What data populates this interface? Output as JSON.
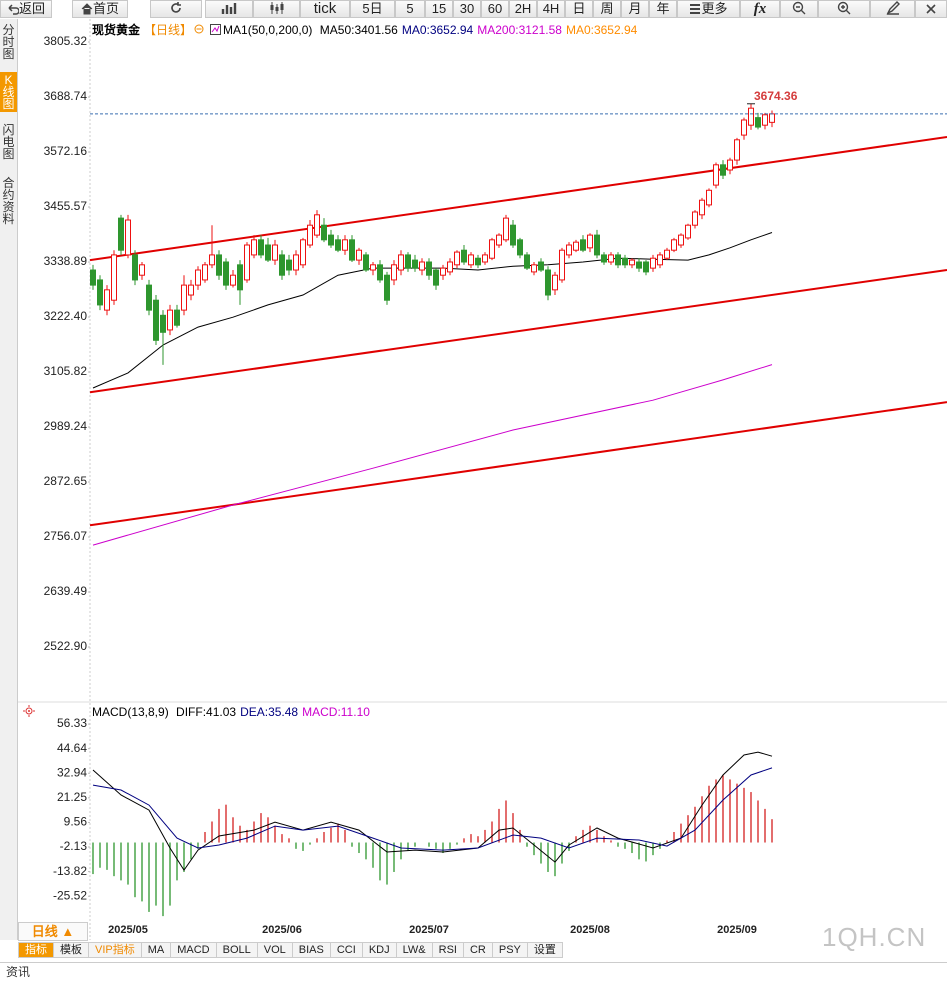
{
  "toolbar": [
    "返回",
    "首页",
    "tick",
    "5日",
    "5",
    "15",
    "30",
    "60",
    "2H",
    "4H",
    "日",
    "周",
    "月",
    "年",
    "更多",
    "fx"
  ],
  "sidebar": [
    "分时图",
    "K线图",
    "闪电图",
    "合约资料"
  ],
  "chart_data": [
    {
      "type": "candlestick",
      "title": "现货黄金",
      "subtitle": "【日线】",
      "indicator": "MA1(50,0,200,0)",
      "legend": [
        {
          "text": "MA50:3401.56",
          "color": "#000000"
        },
        {
          "text": "MA0:3652.94",
          "color": "#000080"
        },
        {
          "text": "MA200:3121.58",
          "color": "#cc00cc"
        },
        {
          "text": "MA0:3652.94",
          "color": "#ff8c00"
        }
      ],
      "up_color": "#ee1111",
      "down_color": "#2e962e",
      "last_line_color": "#3b6fb0",
      "categories": [
        null,
        null,
        null,
        null,
        null,
        "2025/05",
        null,
        null,
        null,
        null,
        null,
        null,
        null,
        null,
        null,
        null,
        null,
        null,
        null,
        null,
        null,
        null,
        null,
        null,
        null,
        null,
        null,
        "2025/06",
        null,
        null,
        null,
        null,
        null,
        null,
        null,
        null,
        null,
        null,
        null,
        null,
        null,
        null,
        null,
        null,
        null,
        null,
        null,
        null,
        "2025/07",
        null,
        null,
        null,
        null,
        null,
        null,
        null,
        null,
        null,
        null,
        null,
        null,
        null,
        null,
        null,
        null,
        null,
        null,
        null,
        null,
        null,
        null,
        "2025/08",
        null,
        null,
        null,
        null,
        null,
        null,
        null,
        null,
        null,
        null,
        null,
        null,
        null,
        null,
        null,
        null,
        null,
        null,
        null,
        null,
        "2025/09",
        null,
        null,
        null,
        null,
        null
      ],
      "open": [
        3322,
        3301,
        3237,
        3258,
        3432,
        3354,
        3354,
        3311,
        3290,
        3258,
        3226,
        3195,
        3237,
        3237,
        3269,
        3290,
        3301,
        3333,
        3354,
        3339,
        3290,
        3333,
        3301,
        3354,
        3386,
        3375,
        3343,
        3354,
        3343,
        3322,
        3333,
        3375,
        3396,
        3417,
        3396,
        3386,
        3364,
        3386,
        3343,
        3354,
        3322,
        3333,
        3311,
        3301,
        3322,
        3354,
        3343,
        3322,
        3339,
        3322,
        3311,
        3318,
        3333,
        3364,
        3333,
        3347,
        3339,
        3347,
        3375,
        3386,
        3417,
        3386,
        3354,
        3318,
        3339,
        3322,
        3280,
        3301,
        3354,
        3364,
        3386,
        3369,
        3396,
        3354,
        3339,
        3354,
        3347,
        3333,
        3339,
        3339,
        3326,
        3333,
        3347,
        3364,
        3375,
        3390,
        3417,
        3439,
        3460,
        3502,
        3545,
        3534,
        3555,
        3608,
        3629,
        3645,
        3629,
        3635
      ],
      "high": [
        3333,
        3311,
        3290,
        3364,
        3439,
        3439,
        3364,
        3339,
        3301,
        3269,
        3237,
        3248,
        3248,
        3311,
        3301,
        3330,
        3339,
        3417,
        3364,
        3347,
        3322,
        3343,
        3381,
        3396,
        3396,
        3390,
        3386,
        3364,
        3354,
        3364,
        3390,
        3428,
        3449,
        3432,
        3407,
        3396,
        3396,
        3396,
        3369,
        3360,
        3339,
        3343,
        3318,
        3343,
        3364,
        3360,
        3354,
        3347,
        3347,
        3326,
        3333,
        3347,
        3364,
        3375,
        3360,
        3354,
        3360,
        3390,
        3400,
        3439,
        3428,
        3390,
        3360,
        3339,
        3347,
        3330,
        3318,
        3369,
        3381,
        3386,
        3396,
        3400,
        3407,
        3360,
        3360,
        3360,
        3354,
        3347,
        3347,
        3343,
        3354,
        3360,
        3369,
        3390,
        3400,
        3420,
        3449,
        3475,
        3495,
        3550,
        3555,
        3560,
        3602,
        3645,
        3674.36,
        3655,
        3655,
        3660
      ],
      "low": [
        3280,
        3237,
        3226,
        3248,
        3354,
        3347,
        3290,
        3301,
        3226,
        3163,
        3121,
        3184,
        3200,
        3226,
        3258,
        3280,
        3295,
        3326,
        3301,
        3280,
        3285,
        3248,
        3295,
        3347,
        3347,
        3339,
        3333,
        3301,
        3311,
        3311,
        3326,
        3369,
        3390,
        3381,
        3369,
        3360,
        3354,
        3339,
        3333,
        3318,
        3311,
        3295,
        3248,
        3290,
        3311,
        3318,
        3318,
        3311,
        3301,
        3280,
        3301,
        3311,
        3326,
        3333,
        3326,
        3326,
        3333,
        3343,
        3369,
        3381,
        3369,
        3347,
        3322,
        3311,
        3318,
        3258,
        3269,
        3295,
        3347,
        3360,
        3360,
        3360,
        3347,
        3333,
        3333,
        3326,
        3326,
        3326,
        3318,
        3311,
        3318,
        3326,
        3343,
        3360,
        3369,
        3386,
        3410,
        3430,
        3455,
        3495,
        3515,
        3525,
        3545,
        3598,
        3619,
        3620,
        3620,
        3625
      ],
      "close": [
        3290,
        3248,
        3280,
        3354,
        3364,
        3428,
        3301,
        3333,
        3237,
        3173,
        3190,
        3237,
        3205,
        3290,
        3290,
        3322,
        3333,
        3354,
        3311,
        3290,
        3311,
        3280,
        3375,
        3386,
        3354,
        3343,
        3375,
        3311,
        3322,
        3354,
        3386,
        3417,
        3439,
        3386,
        3375,
        3364,
        3386,
        3343,
        3364,
        3322,
        3333,
        3301,
        3258,
        3333,
        3354,
        3326,
        3326,
        3339,
        3311,
        3290,
        3326,
        3339,
        3360,
        3339,
        3354,
        3333,
        3354,
        3386,
        3396,
        3432,
        3375,
        3354,
        3326,
        3333,
        3322,
        3269,
        3311,
        3364,
        3375,
        3381,
        3364,
        3396,
        3354,
        3339,
        3354,
        3333,
        3333,
        3343,
        3326,
        3318,
        3347,
        3354,
        3364,
        3386,
        3396,
        3417,
        3445,
        3470,
        3491,
        3545,
        3523,
        3555,
        3598,
        3640,
        3665,
        3625,
        3651,
        3652.94
      ],
      "series": [
        {
          "color": "#000000",
          "x": [
            0,
            5,
            10,
            15,
            20,
            25,
            30,
            35,
            40,
            45,
            50,
            55,
            60,
            65,
            70,
            75,
            80,
            85,
            88,
            91,
            94,
            97
          ],
          "values": [
            3072,
            3104,
            3163,
            3201,
            3222,
            3248,
            3269,
            3311,
            3326,
            3326,
            3326,
            3322,
            3330,
            3333,
            3339,
            3347,
            3345,
            3343,
            3354,
            3369,
            3386,
            3401.56
          ]
        },
        {
          "color": "#cc00cc",
          "x": [
            0,
            20,
            40,
            60,
            80,
            90,
            97
          ],
          "values": [
            2739,
            2824,
            2902,
            2983,
            3046,
            3089,
            3121.58
          ]
        }
      ],
      "trendlines": [
        {
          "color": "#e00000",
          "x": [
            -0.43,
            122
          ],
          "values": [
            3343,
            3604
          ]
        },
        {
          "color": "#e00000",
          "x": [
            -0.43,
            122
          ],
          "values": [
            3063,
            3322
          ]
        },
        {
          "color": "#e00000",
          "x": [
            -0.43,
            122
          ],
          "values": [
            2781,
            3042
          ]
        }
      ],
      "ylim": [
        2410.6,
        3847.7
      ],
      "yticks": [
        3805.32,
        3688.74,
        3572.16,
        3455.57,
        3338.89,
        {
          "value": 3222.4,
          "label": "3222.40"
        },
        3105.82,
        2989.24,
        2872.65,
        2756.07,
        2639.49,
        {
          "value": 2522.9,
          "label": "2522.90"
        }
      ]
    },
    {
      "type": "macd",
      "title": "MACD(13,8,9)",
      "legend": [
        {
          "text": "DIFF:41.03",
          "color": "#000000"
        },
        {
          "text": "DEA:35.48",
          "color": "#000080"
        },
        {
          "text": "MACD:11.10",
          "color": "#cc00cc"
        }
      ],
      "up_color": "#d42020",
      "down_color": "#2e962e",
      "histogram": [
        -15,
        -12,
        -13,
        -16,
        -18,
        -20,
        -26,
        -28,
        -33,
        -30,
        -35,
        -30,
        -18,
        -14,
        -8,
        -3,
        5,
        10,
        16,
        18,
        12,
        8,
        6,
        10,
        14,
        12,
        8,
        4,
        2,
        -3,
        -4,
        -1,
        2,
        5,
        7,
        9,
        6,
        -2,
        -5,
        -8,
        -12,
        -18,
        -20,
        -14,
        -8,
        -4,
        -2,
        0,
        -2,
        -3,
        -5,
        -3,
        -1,
        2,
        4,
        3,
        6,
        10,
        16,
        20,
        14,
        6,
        -2,
        -6,
        -10,
        -14,
        -16,
        -10,
        -4,
        3,
        6,
        8,
        6,
        3,
        1,
        -2,
        -3,
        -5,
        -8,
        -9,
        -6,
        -3,
        1,
        5,
        9,
        13,
        17,
        22,
        27,
        30,
        32,
        30,
        28,
        26,
        24,
        20,
        16,
        11.1
      ],
      "series": [
        {
          "color": "#000000",
          "x": [
            0,
            4,
            8,
            11,
            13,
            15,
            18,
            23,
            26,
            30,
            34,
            38,
            42,
            46,
            50,
            55,
            58,
            60,
            63,
            66,
            68,
            72,
            75,
            80,
            84,
            87,
            90,
            93,
            95,
            97
          ],
          "values": [
            34.5,
            22.6,
            15.4,
            -2.6,
            -13.1,
            -3.6,
            3.1,
            5.9,
            9.7,
            5.9,
            9.7,
            5.9,
            -4.5,
            -3.6,
            -4.5,
            -2.6,
            5.9,
            6.9,
            -1.2,
            -9.3,
            -1.2,
            6.9,
            2.1,
            -2.6,
            2.1,
            17.8,
            32.1,
            41.6,
            43.0,
            41.03
          ]
        },
        {
          "color": "#000080",
          "x": [
            0,
            4,
            8,
            12,
            15,
            18,
            22,
            26,
            30,
            35,
            40,
            44,
            50,
            55,
            60,
            64,
            68,
            72,
            78,
            82,
            86,
            90,
            94,
            97
          ],
          "values": [
            27.3,
            25,
            17.8,
            2.1,
            -2.6,
            -1.2,
            2.1,
            7.8,
            5.9,
            7.8,
            2.1,
            -2.6,
            -3.6,
            -2.6,
            3.6,
            2.1,
            -2.6,
            2.1,
            1.2,
            -1.7,
            5.9,
            20.2,
            32.1,
            35.48
          ]
        }
      ],
      "ylim": [
        -41.6,
        65.4
      ],
      "yticks": [
        56.33,
        44.64,
        32.94,
        21.25,
        9.56,
        -2.13,
        -13.82,
        -25.52
      ]
    }
  ],
  "period_button": "日线 ▲",
  "tabs": [
    "指标",
    "模板",
    "VIP指标",
    "MA",
    "MACD",
    "BOLL",
    "VOL",
    "BIAS",
    "CCI",
    "KDJ",
    "LW&",
    "RSI",
    "CR",
    "PSY",
    "设置"
  ],
  "watermark": "1QH.CN",
  "footer": "资讯"
}
